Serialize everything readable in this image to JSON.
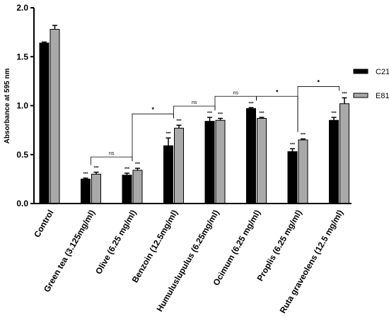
{
  "chart_data": {
    "type": "bar",
    "title": "",
    "xlabel": "",
    "ylabel": "Absorbance at 595 nm",
    "ylim": [
      0,
      2.0
    ],
    "yticks": [
      "0.0",
      "0.5",
      "1.0",
      "1.5",
      "2.0"
    ],
    "grid": false,
    "legend_position": "right",
    "categories": [
      "Control",
      "Green tea (3.125mg/ml)",
      "Olive (6.25 mg/ml)",
      "Benzoin (12.5mg/ml)",
      "Humuluslupulus (6.25mg/ml)",
      "Ocimum (6.25 mg/ml)",
      "Proplis (6.25 mg/ml)",
      "Ruta graveolens (12.5 mg/ml)"
    ],
    "series": [
      {
        "name": "C21",
        "color": "#000000",
        "values": [
          1.64,
          0.25,
          0.29,
          0.59,
          0.84,
          0.97,
          0.53,
          0.85
        ],
        "errors": [
          0.01,
          0.01,
          0.02,
          0.08,
          0.04,
          0.01,
          0.03,
          0.03
        ]
      },
      {
        "name": "E81",
        "color": "#a9a9a9",
        "values": [
          1.78,
          0.3,
          0.34,
          0.77,
          0.85,
          0.87,
          0.65,
          1.02
        ],
        "errors": [
          0.04,
          0.02,
          0.02,
          0.03,
          0.02,
          0.01,
          0.01,
          0.06
        ]
      }
    ],
    "bar_significance": [
      [
        null,
        "***",
        "***",
        "***",
        "***",
        "***",
        "***",
        "***"
      ],
      [
        null,
        "***",
        "***",
        "***",
        "***",
        "***",
        "***",
        "***"
      ]
    ],
    "comparisons": [
      {
        "from": 1,
        "to": 2,
        "label": "ns"
      },
      {
        "from": 2,
        "to": 3,
        "label": "*"
      },
      {
        "from": 3,
        "to": 4,
        "label": "ns"
      },
      {
        "from": 4,
        "to": 5,
        "label": "ns"
      },
      {
        "from": 5,
        "to": 6,
        "label": "*"
      },
      {
        "from": 6,
        "to": 7,
        "label": "*"
      }
    ]
  }
}
